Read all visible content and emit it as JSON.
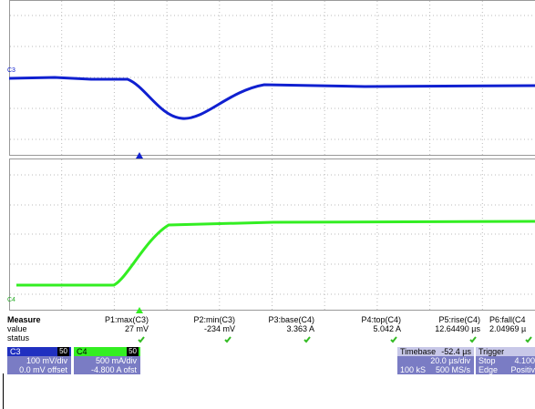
{
  "traces": {
    "c3_label": "C3",
    "c4_label": "C4"
  },
  "measure": {
    "header": [
      "Measure",
      "value",
      "status"
    ],
    "columns": [
      {
        "name": "P1:max(C3)",
        "value": "27 mV"
      },
      {
        "name": "P2:min(C3)",
        "value": "-234 mV"
      },
      {
        "name": "P3:base(C4)",
        "value": "3.363 A"
      },
      {
        "name": "P4:top(C4)",
        "value": "5.042 A"
      },
      {
        "name": "P5:rise(C4)",
        "value": "12.64490 µs"
      },
      {
        "name": "P6:fall(C4",
        "value": "2.04969 µ"
      }
    ]
  },
  "channels": [
    {
      "name": "C3",
      "tag": "50",
      "scale": "100 mV/div",
      "offset": "0.0 mV offset"
    },
    {
      "name": "C4",
      "tag": "50",
      "scale": "500 mA/div",
      "offset": "-4.800 A ofst"
    }
  ],
  "timebase": {
    "title": "Timebase",
    "delay": "-52.4 µs",
    "per_div": "20.0 µs/div",
    "samples": "100 kS",
    "rate": "500 MS/s"
  },
  "trigger": {
    "title": "Trigger",
    "mode": "Stop",
    "level": "4.100",
    "type": "Edge",
    "slope": "Positiv"
  }
}
